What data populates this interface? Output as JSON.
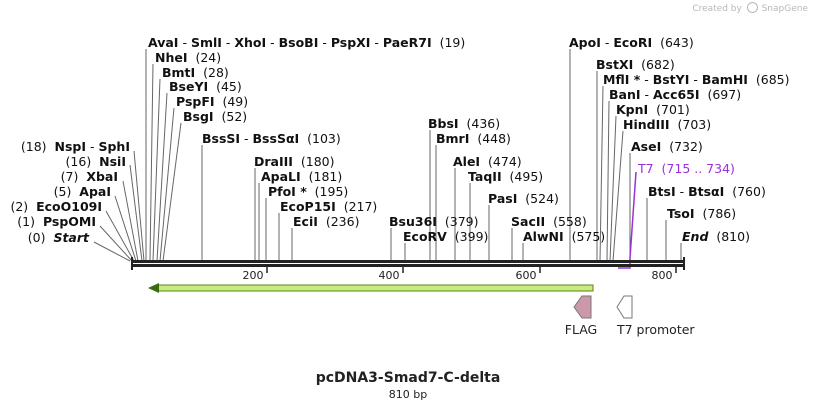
{
  "app": {
    "created_by": "Created by",
    "brand": "SnapGene"
  },
  "plasmid": {
    "name": "pcDNA3-Smad7-C-delta",
    "size_label": "810 bp",
    "length": 810
  },
  "axis": {
    "ticks": [
      200,
      400,
      600,
      800
    ]
  },
  "colors": {
    "backbone": "#222222",
    "orf_fill": "#c6ed7d",
    "orf_border": "#5a7f1a",
    "flag": "#cc99aa",
    "promoter": "#ffffff",
    "t7_label": "#9b30d9"
  },
  "enzyme_rows": [
    {
      "id": "r1",
      "text": [
        {
          "s": "AvaI",
          "b": true
        },
        {
          "s": " - ",
          "b": false
        },
        {
          "s": "SmlI",
          "b": true
        },
        {
          "s": " - ",
          "b": false
        },
        {
          "s": "XhoI",
          "b": true
        },
        {
          "s": " - ",
          "b": false
        },
        {
          "s": "BsoBI",
          "b": true
        },
        {
          "s": " - ",
          "b": false
        },
        {
          "s": "PspXI",
          "b": true
        },
        {
          "s": " - ",
          "b": false
        },
        {
          "s": "PaeR7I",
          "b": true
        },
        {
          "s": "  (19)",
          "b": false
        }
      ]
    },
    {
      "id": "r2",
      "text": [
        {
          "s": "NheI",
          "b": true
        },
        {
          "s": "  (24)",
          "b": false
        }
      ]
    },
    {
      "id": "r3",
      "text": [
        {
          "s": "BmtI",
          "b": true
        },
        {
          "s": "  (28)",
          "b": false
        }
      ]
    },
    {
      "id": "r4",
      "text": [
        {
          "s": "BseYI",
          "b": true
        },
        {
          "s": "  (45)",
          "b": false
        }
      ]
    },
    {
      "id": "r5",
      "text": [
        {
          "s": "PspFI",
          "b": true
        },
        {
          "s": "  (49)",
          "b": false
        }
      ]
    },
    {
      "id": "r6",
      "text": [
        {
          "s": "BsgI",
          "b": true
        },
        {
          "s": "  (52)",
          "b": false
        }
      ]
    },
    {
      "id": "r7",
      "text": [
        {
          "s": "BssSI",
          "b": true
        },
        {
          "s": " - ",
          "b": false
        },
        {
          "s": "BssSαI",
          "b": true
        },
        {
          "s": "  (103)",
          "b": false
        }
      ]
    },
    {
      "id": "r8",
      "text": [
        {
          "s": "DraIII",
          "b": true
        },
        {
          "s": "  (180)",
          "b": false
        }
      ]
    },
    {
      "id": "r9",
      "text": [
        {
          "s": "ApaLI",
          "b": true
        },
        {
          "s": "  (181)",
          "b": false
        }
      ]
    },
    {
      "id": "r10",
      "text": [
        {
          "s": "PfoI *",
          "b": true
        },
        {
          "s": "  (195)",
          "b": false
        }
      ]
    },
    {
      "id": "r11",
      "text": [
        {
          "s": "EcoP15I",
          "b": true
        },
        {
          "s": "  (217)",
          "b": false
        }
      ]
    },
    {
      "id": "r12",
      "text": [
        {
          "s": "EciI",
          "b": true
        },
        {
          "s": "  (236)",
          "b": false
        }
      ]
    },
    {
      "id": "r13",
      "text": [
        {
          "s": "(18)  ",
          "b": false
        },
        {
          "s": "NspI",
          "b": true
        },
        {
          "s": " - ",
          "b": false
        },
        {
          "s": "SphI",
          "b": true
        }
      ]
    },
    {
      "id": "r14",
      "text": [
        {
          "s": "(16)  ",
          "b": false
        },
        {
          "s": "NsiI",
          "b": true
        }
      ]
    },
    {
      "id": "r15",
      "text": [
        {
          "s": "(7)  ",
          "b": false
        },
        {
          "s": "XbaI",
          "b": true
        }
      ]
    },
    {
      "id": "r16",
      "text": [
        {
          "s": "(5)  ",
          "b": false
        },
        {
          "s": "ApaI",
          "b": true
        }
      ]
    },
    {
      "id": "r17",
      "text": [
        {
          "s": "(2)  ",
          "b": false
        },
        {
          "s": "EcoO109I",
          "b": true
        }
      ]
    },
    {
      "id": "r18",
      "text": [
        {
          "s": "(1)  ",
          "b": false
        },
        {
          "s": "PspOMI",
          "b": true
        }
      ]
    },
    {
      "id": "r19",
      "text": [
        {
          "s": "(0)  ",
          "b": false
        },
        {
          "s": "Start",
          "b": true,
          "i": true
        }
      ]
    },
    {
      "id": "r20",
      "text": [
        {
          "s": "BbsI",
          "b": true
        },
        {
          "s": "  (436)",
          "b": false
        }
      ]
    },
    {
      "id": "r21",
      "text": [
        {
          "s": "BmrI",
          "b": true
        },
        {
          "s": "  (448)",
          "b": false
        }
      ]
    },
    {
      "id": "r22",
      "text": [
        {
          "s": "AleI",
          "b": true
        },
        {
          "s": "  (474)",
          "b": false
        }
      ]
    },
    {
      "id": "r23",
      "text": [
        {
          "s": "TaqII",
          "b": true
        },
        {
          "s": "  (495)",
          "b": false
        }
      ]
    },
    {
      "id": "r24",
      "text": [
        {
          "s": "PasI",
          "b": true
        },
        {
          "s": "  (524)",
          "b": false
        }
      ]
    },
    {
      "id": "r25",
      "text": [
        {
          "s": "Bsu36I",
          "b": true
        },
        {
          "s": "  (379)",
          "b": false
        }
      ]
    },
    {
      "id": "r26",
      "text": [
        {
          "s": "EcoRV",
          "b": true
        },
        {
          "s": "  (399)",
          "b": false
        }
      ]
    },
    {
      "id": "r27",
      "text": [
        {
          "s": "SacII",
          "b": true
        },
        {
          "s": "  (558)",
          "b": false
        }
      ]
    },
    {
      "id": "r28",
      "text": [
        {
          "s": "AlwNI",
          "b": true
        },
        {
          "s": "  (575)",
          "b": false
        }
      ]
    },
    {
      "id": "r29",
      "text": [
        {
          "s": "ApoI",
          "b": true
        },
        {
          "s": " - ",
          "b": false
        },
        {
          "s": "EcoRI",
          "b": true
        },
        {
          "s": "  (643)",
          "b": false
        }
      ]
    },
    {
      "id": "r30",
      "text": [
        {
          "s": "BstXI",
          "b": true
        },
        {
          "s": "  (682)",
          "b": false
        }
      ]
    },
    {
      "id": "r31",
      "text": [
        {
          "s": "MflI *",
          "b": true
        },
        {
          "s": " - ",
          "b": false
        },
        {
          "s": "BstYI",
          "b": true
        },
        {
          "s": " - ",
          "b": false
        },
        {
          "s": "BamHI",
          "b": true
        },
        {
          "s": "  (685)",
          "b": false
        }
      ]
    },
    {
      "id": "r32",
      "text": [
        {
          "s": "BanI",
          "b": true
        },
        {
          "s": " - ",
          "b": false
        },
        {
          "s": "Acc65I",
          "b": true
        },
        {
          "s": "  (697)",
          "b": false
        }
      ]
    },
    {
      "id": "r33",
      "text": [
        {
          "s": "KpnI",
          "b": true
        },
        {
          "s": "  (701)",
          "b": false
        }
      ]
    },
    {
      "id": "r34",
      "text": [
        {
          "s": "HindIII",
          "b": true
        },
        {
          "s": "  (703)",
          "b": false
        }
      ]
    },
    {
      "id": "r35",
      "text": [
        {
          "s": "AseI",
          "b": true
        },
        {
          "s": "  (732)",
          "b": false
        }
      ]
    },
    {
      "id": "r36",
      "text": [
        {
          "s": "T7",
          "b": false,
          "p": true
        },
        {
          "s": "  (715 .. 734)",
          "b": false,
          "p": true
        }
      ]
    },
    {
      "id": "r37",
      "text": [
        {
          "s": "BtsI",
          "b": true
        },
        {
          "s": " - ",
          "b": false
        },
        {
          "s": "BtsαI",
          "b": true
        },
        {
          "s": "  (760)",
          "b": false
        }
      ]
    },
    {
      "id": "r38",
      "text": [
        {
          "s": "TsoI",
          "b": true
        },
        {
          "s": "  (786)",
          "b": false
        }
      ]
    },
    {
      "id": "r39",
      "text": [
        {
          "s": "End",
          "b": true,
          "i": true
        },
        {
          "s": "  (810)",
          "b": false
        }
      ]
    }
  ],
  "features": [
    {
      "id": "flag",
      "label": "FLAG"
    },
    {
      "id": "t7prom",
      "label": "T7 promoter"
    }
  ]
}
